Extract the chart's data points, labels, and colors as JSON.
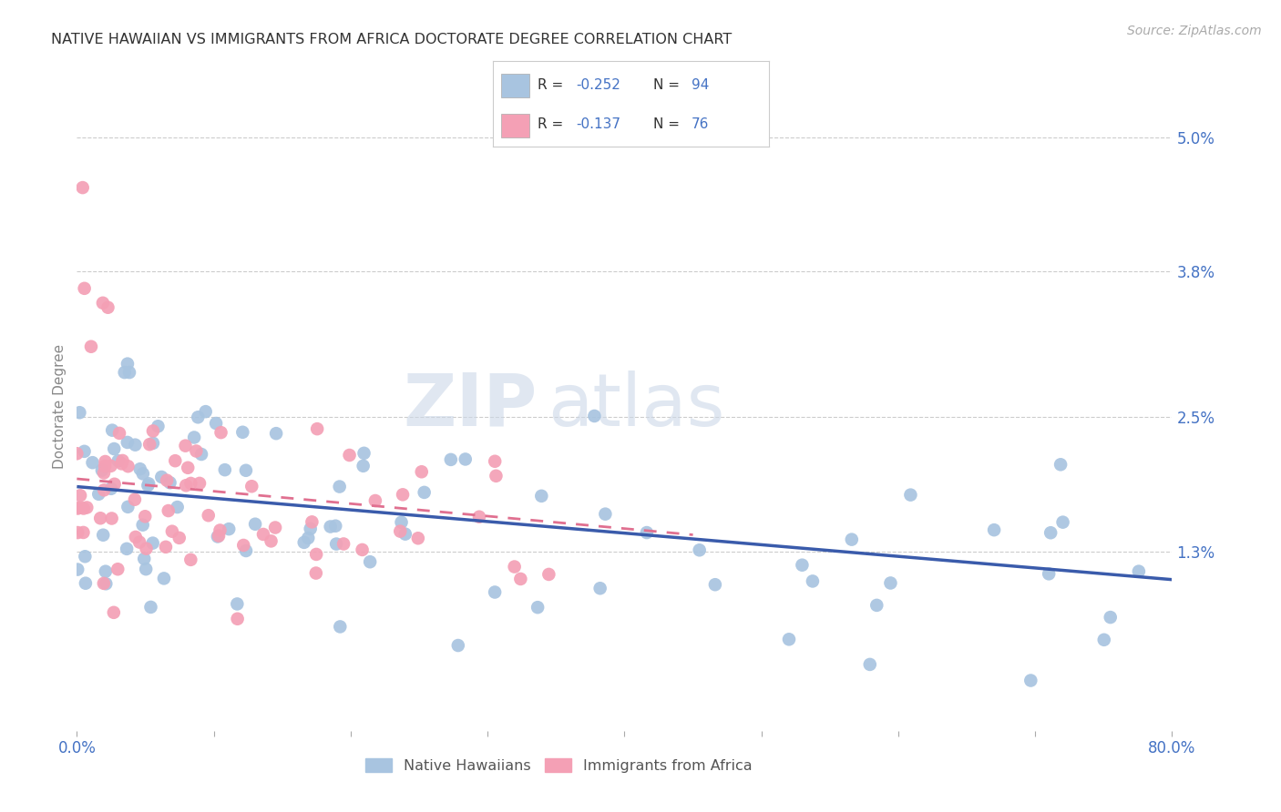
{
  "title": "NATIVE HAWAIIAN VS IMMIGRANTS FROM AFRICA DOCTORATE DEGREE CORRELATION CHART",
  "source": "Source: ZipAtlas.com",
  "ylabel": "Doctorate Degree",
  "watermark_zip": "ZIP",
  "watermark_atlas": "atlas",
  "right_ytick_vals": [
    1.3,
    2.5,
    3.8,
    5.0
  ],
  "right_ytick_labels": [
    "1.3%",
    "2.5%",
    "3.8%",
    "5.0%"
  ],
  "xlim": [
    0.0,
    80.0
  ],
  "ylim_min": -0.3,
  "ylim_max": 5.5,
  "series1_color": "#a8c4e0",
  "series2_color": "#f4a0b5",
  "line1_color": "#3a5bab",
  "line2_color": "#e07090",
  "legend_R1": "-0.252",
  "legend_N1": "94",
  "legend_R2": "-0.137",
  "legend_N2": "76",
  "R1": -0.252,
  "N1": 94,
  "R2": -0.137,
  "N2": 76,
  "grid_color": "#cccccc",
  "background_color": "#ffffff",
  "title_color": "#333333",
  "axis_label_color": "#4472c4",
  "legend_color_R": "#333333",
  "legend_color_N": "#4472c4",
  "bottom_legend_label1": "Native Hawaiians",
  "bottom_legend_label2": "Immigrants from Africa",
  "line1_y0": 1.88,
  "line1_y80": 1.05,
  "line2_y0": 1.95,
  "line2_y40": 1.45
}
